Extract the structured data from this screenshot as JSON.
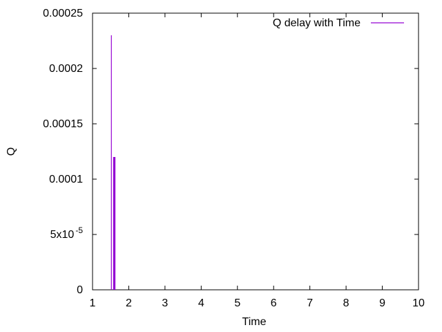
{
  "chart_data": {
    "type": "line",
    "xlabel": "Time",
    "ylabel": "Q",
    "xlim": [
      1,
      10
    ],
    "ylim": [
      0,
      0.00025
    ],
    "x_ticks": [
      1,
      2,
      3,
      4,
      5,
      6,
      7,
      8,
      9,
      10
    ],
    "x_tick_labels": [
      "1",
      "2",
      "3",
      "4",
      "5",
      "6",
      "7",
      "8",
      "9",
      "10"
    ],
    "y_ticks": [
      0,
      5e-05,
      0.0001,
      0.00015,
      0.0002,
      0.00025
    ],
    "y_tick_labels": [
      "0",
      "5x10",
      "0.0001",
      "0.00015",
      "0.0002",
      "0.00025"
    ],
    "y_tick_superscripts": [
      "",
      "-5",
      "",
      "",
      "",
      ""
    ],
    "grid": false,
    "legend_position": "top-right",
    "series": [
      {
        "name": "Q delay with Time",
        "color": "#9400d3",
        "segments": [
          {
            "x": 1.52,
            "y_from": 0,
            "y_to": 0.00023
          },
          {
            "x": 1.58,
            "y_from": 0,
            "y_to": 0.00012
          },
          {
            "x": 1.6,
            "y_from": 0,
            "y_to": 0.00012
          },
          {
            "x": 1.62,
            "y_from": 0,
            "y_to": 0.00012
          }
        ]
      }
    ]
  }
}
